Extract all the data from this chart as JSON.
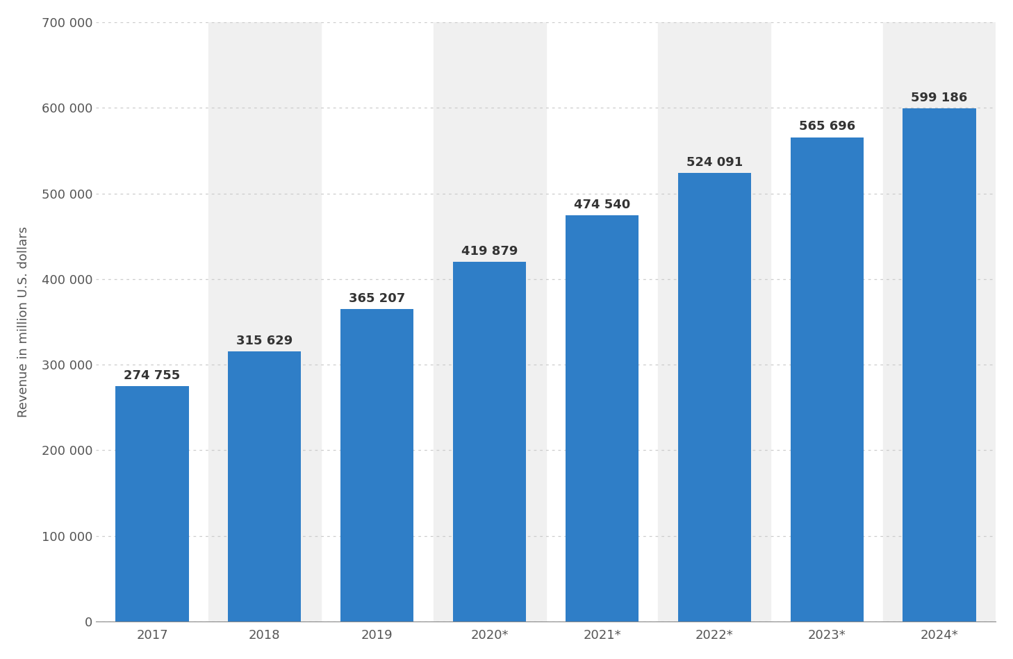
{
  "categories": [
    "2017",
    "2018",
    "2019",
    "2020*",
    "2021*",
    "2022*",
    "2023*",
    "2024*"
  ],
  "values": [
    274755,
    315629,
    365207,
    419879,
    474540,
    524091,
    565696,
    599186
  ],
  "labels": [
    "274 755",
    "315 629",
    "365 207",
    "419 879",
    "474 540",
    "524 091",
    "565 696",
    "599 186"
  ],
  "bar_color": "#2f7ec7",
  "ylabel": "Revenue in million U.S. dollars",
  "ylim": [
    0,
    700000
  ],
  "yticks": [
    0,
    100000,
    200000,
    300000,
    400000,
    500000,
    600000,
    700000
  ],
  "ytick_labels": [
    "0",
    "100 000",
    "200 000",
    "300 000",
    "400 000",
    "500 000",
    "600 000",
    "700 000"
  ],
  "bg_color": "#ffffff",
  "plot_bg_color": "#f0f0f0",
  "stripe_color": "#f0f0f0",
  "white_color": "#ffffff",
  "grid_color": "#cccccc",
  "label_fontsize": 13,
  "tick_fontsize": 13,
  "ylabel_fontsize": 13,
  "label_color": "#333333"
}
